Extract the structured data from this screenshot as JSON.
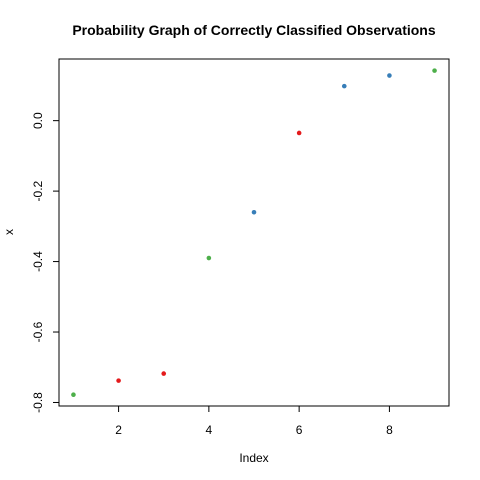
{
  "chart_data": {
    "type": "scatter",
    "title": "Probability Graph of Correctly Classified Observations",
    "xlabel": "Index",
    "ylabel": "x",
    "xlim": [
      0.68,
      9.32
    ],
    "ylim": [
      -0.81,
      0.175
    ],
    "xticks": [
      2,
      4,
      6,
      8
    ],
    "yticks": [
      -0.8,
      -0.6,
      -0.4,
      -0.2,
      0.0
    ],
    "ytick_labels": [
      "-0.8",
      "-0.6",
      "-0.4",
      "-0.2",
      "0.0"
    ],
    "grid": false,
    "points": [
      {
        "x": 1,
        "y": -0.778,
        "color": "#4daf4a"
      },
      {
        "x": 2,
        "y": -0.738,
        "color": "#e41a1c"
      },
      {
        "x": 3,
        "y": -0.718,
        "color": "#e41a1c"
      },
      {
        "x": 4,
        "y": -0.39,
        "color": "#4daf4a"
      },
      {
        "x": 5,
        "y": -0.26,
        "color": "#377eb8"
      },
      {
        "x": 6,
        "y": -0.035,
        "color": "#e41a1c"
      },
      {
        "x": 7,
        "y": 0.098,
        "color": "#377eb8"
      },
      {
        "x": 8,
        "y": 0.128,
        "color": "#377eb8"
      },
      {
        "x": 9,
        "y": 0.142,
        "color": "#4daf4a"
      }
    ]
  }
}
